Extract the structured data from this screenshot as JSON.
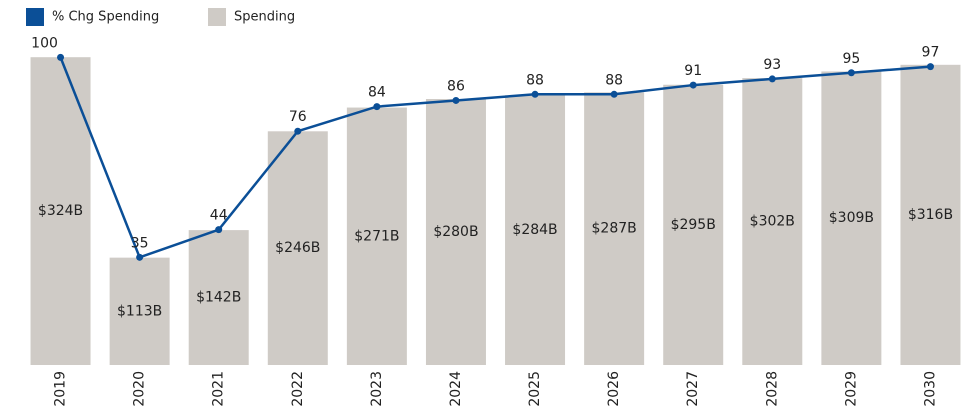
{
  "chart_data": {
    "type": "bar",
    "categories": [
      "2019",
      "2020",
      "2021",
      "2022",
      "2023",
      "2024",
      "2025",
      "2026",
      "2027",
      "2028",
      "2029",
      "2030"
    ],
    "series": [
      {
        "name": "% Chg Spending",
        "type": "line",
        "axis": "y2",
        "color": "#0b4f97",
        "values": [
          100,
          35,
          44,
          76,
          84,
          86,
          88,
          88,
          91,
          93,
          95,
          97
        ]
      },
      {
        "name": "Spending",
        "type": "bar",
        "color": "#cfcbc6",
        "values": [
          324,
          113,
          142,
          246,
          271,
          280,
          284,
          287,
          295,
          302,
          309,
          316
        ],
        "value_labels": [
          "$324B",
          "$113B",
          "$142B",
          "$246B",
          "$271B",
          "$280B",
          "$284B",
          "$287B",
          "$295B",
          "$302B",
          "$309B",
          "$316B"
        ]
      }
    ],
    "ylim": [
      0,
      340
    ],
    "y2lim": [
      0,
      105
    ],
    "legend": "top-left"
  }
}
